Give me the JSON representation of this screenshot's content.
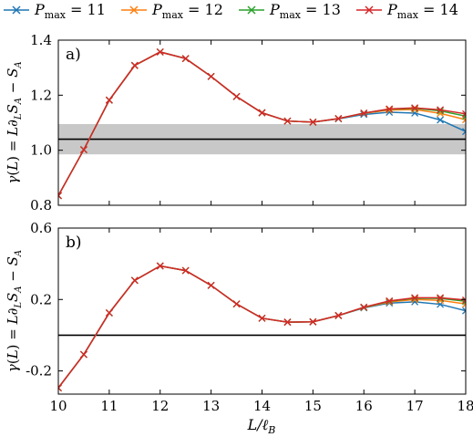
{
  "legend": [
    {
      "name": "P_max = 11",
      "var": "P",
      "sub": "max",
      "eq": " = 11",
      "color": "#1f77b4"
    },
    {
      "name": "P_max = 12",
      "var": "P",
      "sub": "max",
      "eq": " = 12",
      "color": "#ff7f0e"
    },
    {
      "name": "P_max = 13",
      "var": "P",
      "sub": "max",
      "eq": " = 13",
      "color": "#2ca02c"
    },
    {
      "name": "P_max = 14",
      "var": "P",
      "sub": "max",
      "eq": " = 14",
      "color": "#d62728"
    }
  ],
  "xlabel": "L/ℓ_B",
  "chart_data": [
    {
      "type": "line",
      "panel_label": "a)",
      "ylabel": "γ(L) = L∂_L S_A − S_A",
      "xlim": [
        10,
        18
      ],
      "ylim": [
        0.8,
        1.4
      ],
      "xticks": [
        10,
        11,
        12,
        13,
        14,
        15,
        16,
        17,
        18
      ],
      "yticks": [
        0.8,
        1.0,
        1.2,
        1.4
      ],
      "ytick_labels": [
        "0.8",
        "1.0",
        "1.2",
        "1.4"
      ],
      "reference_line": 1.04,
      "band": [
        0.985,
        1.095
      ],
      "x": [
        10,
        10.5,
        11,
        11.5,
        12,
        12.5,
        13,
        13.5,
        14,
        14.5,
        15,
        15.5,
        16,
        16.5,
        17,
        17.5,
        18
      ],
      "series": [
        {
          "name": "P_max = 11",
          "color": "#1f77b4",
          "values": [
            0.835,
            1.002,
            1.182,
            1.308,
            1.357,
            1.333,
            1.268,
            1.195,
            1.136,
            1.106,
            1.102,
            1.114,
            1.13,
            1.138,
            1.135,
            1.11,
            1.068
          ]
        },
        {
          "name": "P_max = 12",
          "color": "#ff7f0e",
          "values": [
            0.835,
            1.002,
            1.182,
            1.308,
            1.357,
            1.333,
            1.268,
            1.195,
            1.136,
            1.106,
            1.102,
            1.115,
            1.134,
            1.146,
            1.148,
            1.134,
            1.111
          ]
        },
        {
          "name": "P_max = 13",
          "color": "#2ca02c",
          "values": [
            0.835,
            1.002,
            1.182,
            1.308,
            1.357,
            1.333,
            1.268,
            1.195,
            1.136,
            1.106,
            1.102,
            1.115,
            1.135,
            1.149,
            1.152,
            1.143,
            1.124
          ]
        },
        {
          "name": "P_max = 14",
          "color": "#d62728",
          "values": [
            0.835,
            1.002,
            1.182,
            1.308,
            1.357,
            1.333,
            1.268,
            1.195,
            1.136,
            1.106,
            1.102,
            1.115,
            1.135,
            1.15,
            1.154,
            1.147,
            1.132
          ]
        }
      ]
    },
    {
      "type": "line",
      "panel_label": "b)",
      "ylabel": "γ(L) = L∂_L S_A − S_A",
      "xlim": [
        10,
        18
      ],
      "ylim": [
        -0.33,
        0.6
      ],
      "xticks": [
        10,
        11,
        12,
        13,
        14,
        15,
        16,
        17,
        18
      ],
      "yticks": [
        -0.2,
        0.2,
        0.6
      ],
      "ytick_labels": [
        "-0.2",
        "0.2",
        "0.6"
      ],
      "reference_line": 0.0,
      "x": [
        10,
        10.5,
        11,
        11.5,
        12,
        12.5,
        13,
        13.5,
        14,
        14.5,
        15,
        15.5,
        16,
        16.5,
        17,
        17.5,
        18
      ],
      "series": [
        {
          "name": "P_max = 11",
          "color": "#1f77b4",
          "values": [
            -0.295,
            -0.108,
            0.125,
            0.307,
            0.388,
            0.362,
            0.279,
            0.175,
            0.095,
            0.073,
            0.075,
            0.11,
            0.153,
            0.18,
            0.187,
            0.173,
            0.137
          ]
        },
        {
          "name": "P_max = 12",
          "color": "#ff7f0e",
          "values": [
            -0.295,
            -0.108,
            0.125,
            0.307,
            0.388,
            0.362,
            0.279,
            0.175,
            0.095,
            0.073,
            0.075,
            0.11,
            0.155,
            0.186,
            0.2,
            0.195,
            0.175
          ]
        },
        {
          "name": "P_max = 13",
          "color": "#2ca02c",
          "values": [
            -0.295,
            -0.108,
            0.125,
            0.307,
            0.388,
            0.362,
            0.279,
            0.175,
            0.095,
            0.073,
            0.075,
            0.11,
            0.156,
            0.19,
            0.207,
            0.206,
            0.19
          ]
        },
        {
          "name": "P_max = 14",
          "color": "#d62728",
          "values": [
            -0.295,
            -0.108,
            0.125,
            0.307,
            0.388,
            0.362,
            0.279,
            0.175,
            0.095,
            0.073,
            0.075,
            0.11,
            0.157,
            0.192,
            0.21,
            0.21,
            0.197
          ]
        }
      ]
    }
  ]
}
